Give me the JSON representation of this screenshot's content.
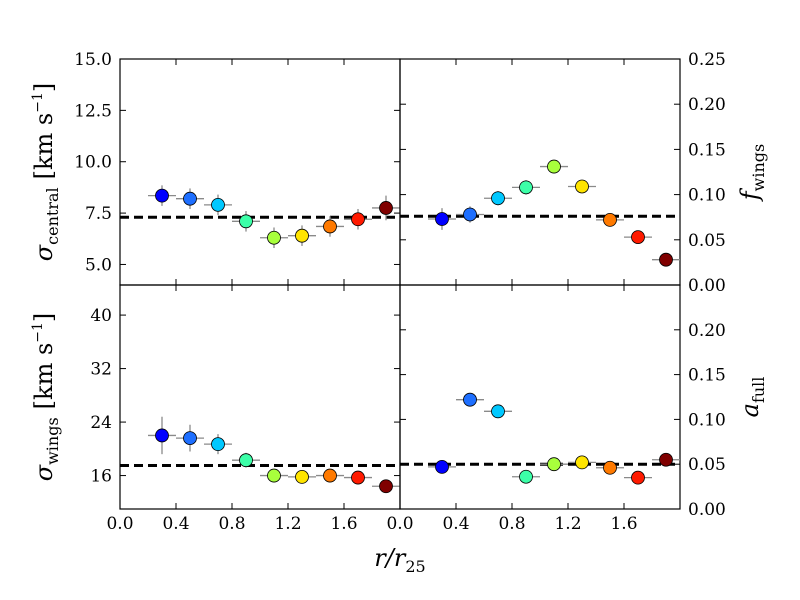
{
  "chart_data": {
    "type": "scatter",
    "xlabel_main": "r/r",
    "xlabel_sub": "25",
    "colors": [
      "#0000ff",
      "#1e6fff",
      "#00c8ff",
      "#3cffa8",
      "#a8ff3c",
      "#ffe400",
      "#ff7a00",
      "#ff1a00",
      "#800000"
    ],
    "panels": [
      {
        "id": "sigma-central",
        "position": "top-left",
        "ylabel_symbol": "σ",
        "ylabel_sub": "central",
        "ylabel_unit": "[km s",
        "ylabel_exp": "−1",
        "ylabel_close": "]",
        "ylim": [
          4.0,
          15.0
        ],
        "yticks": [
          "5.0",
          "7.5",
          "10.0",
          "12.5",
          "15.0"
        ],
        "xlim": [
          0.0,
          2.0
        ],
        "xticks": [
          "0.0",
          "0.4",
          "0.8",
          "1.2",
          "1.6"
        ],
        "hline": 7.3,
        "points": [
          {
            "x": 0.3,
            "y": 8.35,
            "yerr": 0.5
          },
          {
            "x": 0.5,
            "y": 8.2,
            "yerr": 0.5
          },
          {
            "x": 0.7,
            "y": 7.9,
            "yerr": 0.5
          },
          {
            "x": 0.9,
            "y": 7.1,
            "yerr": 0.5
          },
          {
            "x": 1.1,
            "y": 6.3,
            "yerr": 0.5
          },
          {
            "x": 1.3,
            "y": 6.4,
            "yerr": 0.5
          },
          {
            "x": 1.5,
            "y": 6.85,
            "yerr": 0.5
          },
          {
            "x": 1.7,
            "y": 7.2,
            "yerr": 0.5
          },
          {
            "x": 1.9,
            "y": 7.75,
            "yerr": 0.6
          }
        ]
      },
      {
        "id": "f-wings",
        "position": "top-right",
        "ylabel_symbol": "f",
        "ylabel_sub": "wings",
        "ylim": [
          0.0,
          0.25
        ],
        "yticks": [
          "0.00",
          "0.05",
          "0.10",
          "0.15",
          "0.20",
          "0.25"
        ],
        "xlim": [
          0.0,
          2.0
        ],
        "xticks": [
          "0.0",
          "0.4",
          "0.8",
          "1.2",
          "1.6"
        ],
        "hline": 0.076,
        "points": [
          {
            "x": 0.3,
            "y": 0.073,
            "yerr": 0.012
          },
          {
            "x": 0.5,
            "y": 0.078,
            "yerr": 0.009
          },
          {
            "x": 0.7,
            "y": 0.096,
            "yerr": 0.008
          },
          {
            "x": 0.9,
            "y": 0.108,
            "yerr": 0.008
          },
          {
            "x": 1.1,
            "y": 0.131,
            "yerr": 0.006
          },
          {
            "x": 1.3,
            "y": 0.109,
            "yerr": 0.004
          },
          {
            "x": 1.5,
            "y": 0.072,
            "yerr": 0.004
          },
          {
            "x": 1.7,
            "y": 0.053,
            "yerr": 0.002
          },
          {
            "x": 1.9,
            "y": 0.028,
            "yerr": 0.002
          }
        ]
      },
      {
        "id": "sigma-wings",
        "position": "bottom-left",
        "ylabel_symbol": "σ",
        "ylabel_sub": "wings",
        "ylabel_unit": "[km s",
        "ylabel_exp": "−1",
        "ylabel_close": "]",
        "ylim": [
          11.0,
          44.5
        ],
        "yticks": [
          "16",
          "24",
          "32",
          "40"
        ],
        "xlim": [
          0.0,
          2.0
        ],
        "xticks": [
          "0.0",
          "0.4",
          "0.8",
          "1.2",
          "1.6"
        ],
        "hline": 17.5,
        "points": [
          {
            "x": 0.3,
            "y": 22.0,
            "yerr": 2.8
          },
          {
            "x": 0.5,
            "y": 21.6,
            "yerr": 2.0
          },
          {
            "x": 0.7,
            "y": 20.7,
            "yerr": 1.5
          },
          {
            "x": 0.9,
            "y": 18.3,
            "yerr": 1.1
          },
          {
            "x": 1.1,
            "y": 16.0,
            "yerr": 0.6
          },
          {
            "x": 1.3,
            "y": 15.8,
            "yerr": 0.6
          },
          {
            "x": 1.5,
            "y": 16.0,
            "yerr": 0.6
          },
          {
            "x": 1.7,
            "y": 15.7,
            "yerr": 0.6
          },
          {
            "x": 1.9,
            "y": 14.4,
            "yerr": 1.0
          }
        ]
      },
      {
        "id": "a-full",
        "position": "bottom-right",
        "ylabel_symbol": "a",
        "ylabel_sub": "full",
        "ylim": [
          0.0,
          0.25
        ],
        "yticks": [
          "0.00",
          "0.05",
          "0.10",
          "0.15",
          "0.20"
        ],
        "xlim": [
          0.0,
          2.0
        ],
        "xticks": [
          "0.0",
          "0.4",
          "0.8",
          "1.2",
          "1.6"
        ],
        "hline": 0.05,
        "points": [
          {
            "x": 0.3,
            "y": 0.047,
            "yerr": 0.003
          },
          {
            "x": 0.5,
            "y": 0.122,
            "yerr": 0.003
          },
          {
            "x": 0.7,
            "y": 0.109,
            "yerr": 0.003
          },
          {
            "x": 0.9,
            "y": 0.036,
            "yerr": 0.003
          },
          {
            "x": 1.1,
            "y": 0.05,
            "yerr": 0.003
          },
          {
            "x": 1.3,
            "y": 0.052,
            "yerr": 0.003
          },
          {
            "x": 1.5,
            "y": 0.046,
            "yerr": 0.003
          },
          {
            "x": 1.7,
            "y": 0.035,
            "yerr": 0.003
          },
          {
            "x": 1.9,
            "y": 0.055,
            "yerr": 0.003
          }
        ]
      }
    ]
  }
}
